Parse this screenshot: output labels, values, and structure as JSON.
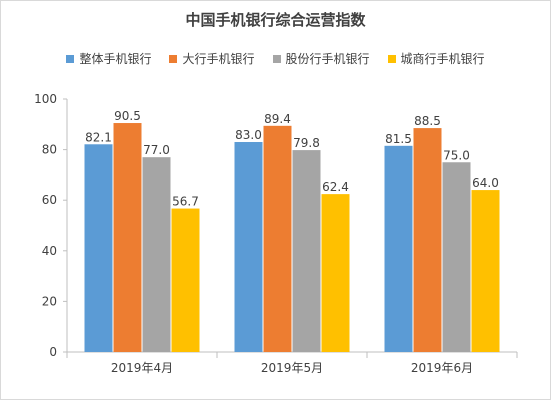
{
  "chart_data": {
    "type": "bar",
    "title": "中国手机银行综合运营指数",
    "categories": [
      "2019年4月",
      "2019年5月",
      "2019年6月"
    ],
    "series": [
      {
        "name": "整体手机银行",
        "color": "#5b9bd5",
        "values": [
          82.1,
          83.0,
          81.5
        ],
        "labels": [
          "82.1",
          "83.0",
          "81.5"
        ]
      },
      {
        "name": "大行手机银行",
        "color": "#ed7d31",
        "values": [
          90.5,
          89.4,
          88.5
        ],
        "labels": [
          "90.5",
          "89.4",
          "88.5"
        ]
      },
      {
        "name": "股份行手机银行",
        "color": "#a5a5a5",
        "values": [
          77.0,
          79.8,
          75.0
        ],
        "labels": [
          "77.0",
          "79.8",
          "75.0"
        ]
      },
      {
        "name": "城商行手机银行",
        "color": "#ffc000",
        "values": [
          56.7,
          62.4,
          64.0
        ],
        "labels": [
          "56.7",
          "62.4",
          "64.0"
        ]
      }
    ],
    "ylim": [
      0,
      100
    ],
    "yticks": [
      "0",
      "20",
      "40",
      "60",
      "80",
      "100"
    ],
    "xlabel": "",
    "ylabel": "",
    "grid": false,
    "legend_position": "top"
  }
}
